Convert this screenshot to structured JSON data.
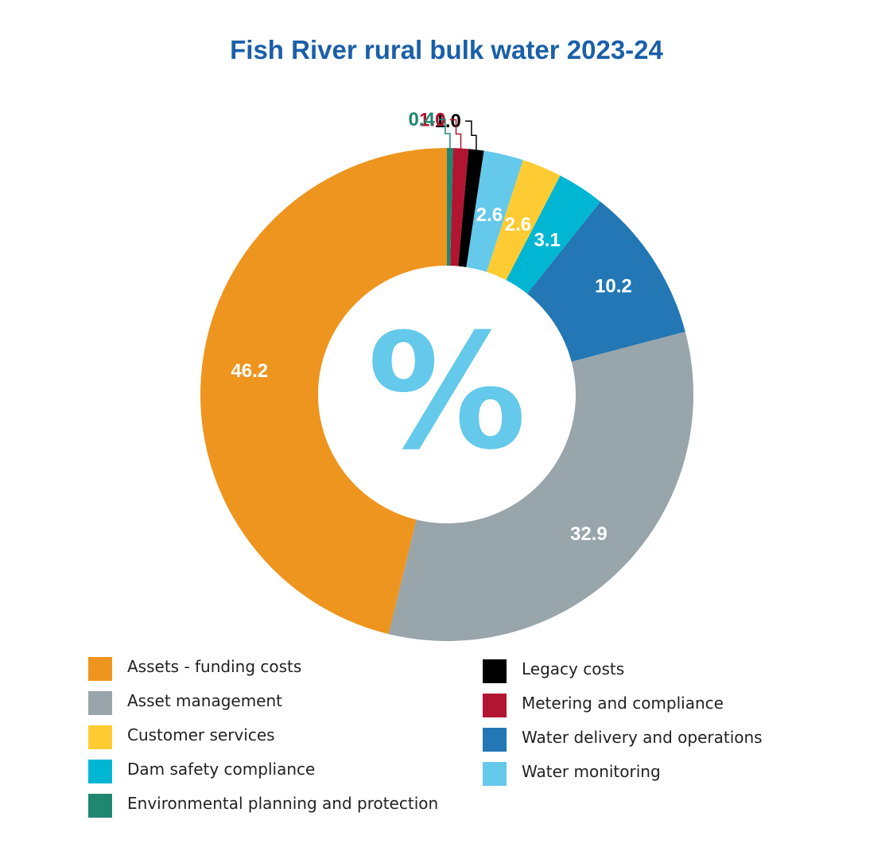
{
  "chart_data": {
    "type": "pie",
    "title": "Fish River rural bulk water 2023-24",
    "center_symbol": "%",
    "slices": [
      {
        "name": "Assets - funding costs",
        "value": 46.2,
        "label": "46.2",
        "color": "#ee951f"
      },
      {
        "name": "Asset management",
        "value": 32.9,
        "label": "32.9",
        "color": "#98a5ab"
      },
      {
        "name": "Water delivery and operations",
        "value": 10.2,
        "label": "10.2",
        "color": "#2277b4"
      },
      {
        "name": "Dam safety compliance",
        "value": 3.1,
        "label": "3.1",
        "color": "#00b6d3"
      },
      {
        "name": "Customer services",
        "value": 2.6,
        "label": "2.6",
        "color": "#fecc32"
      },
      {
        "name": "Water monitoring",
        "value": 2.6,
        "label": "2.6",
        "color": "#64c9ea"
      },
      {
        "name": "Legacy costs",
        "value": 1.0,
        "label": "1.0",
        "color": "#000000"
      },
      {
        "name": "Metering and compliance",
        "value": 1.0,
        "label": "1.0",
        "color": "#b21531"
      },
      {
        "name": "Environmental planning and protection",
        "value": 0.4,
        "label": "0.4",
        "color": "#1f8670"
      }
    ],
    "legend_columns": [
      [
        "Assets - funding costs",
        "Asset management",
        "Customer services",
        "Dam safety compliance",
        "Environmental planning and protection"
      ],
      [
        "Legacy costs",
        "Metering and compliance",
        "Water delivery and operations",
        "Water monitoring"
      ]
    ],
    "legend_position": "bottom"
  }
}
